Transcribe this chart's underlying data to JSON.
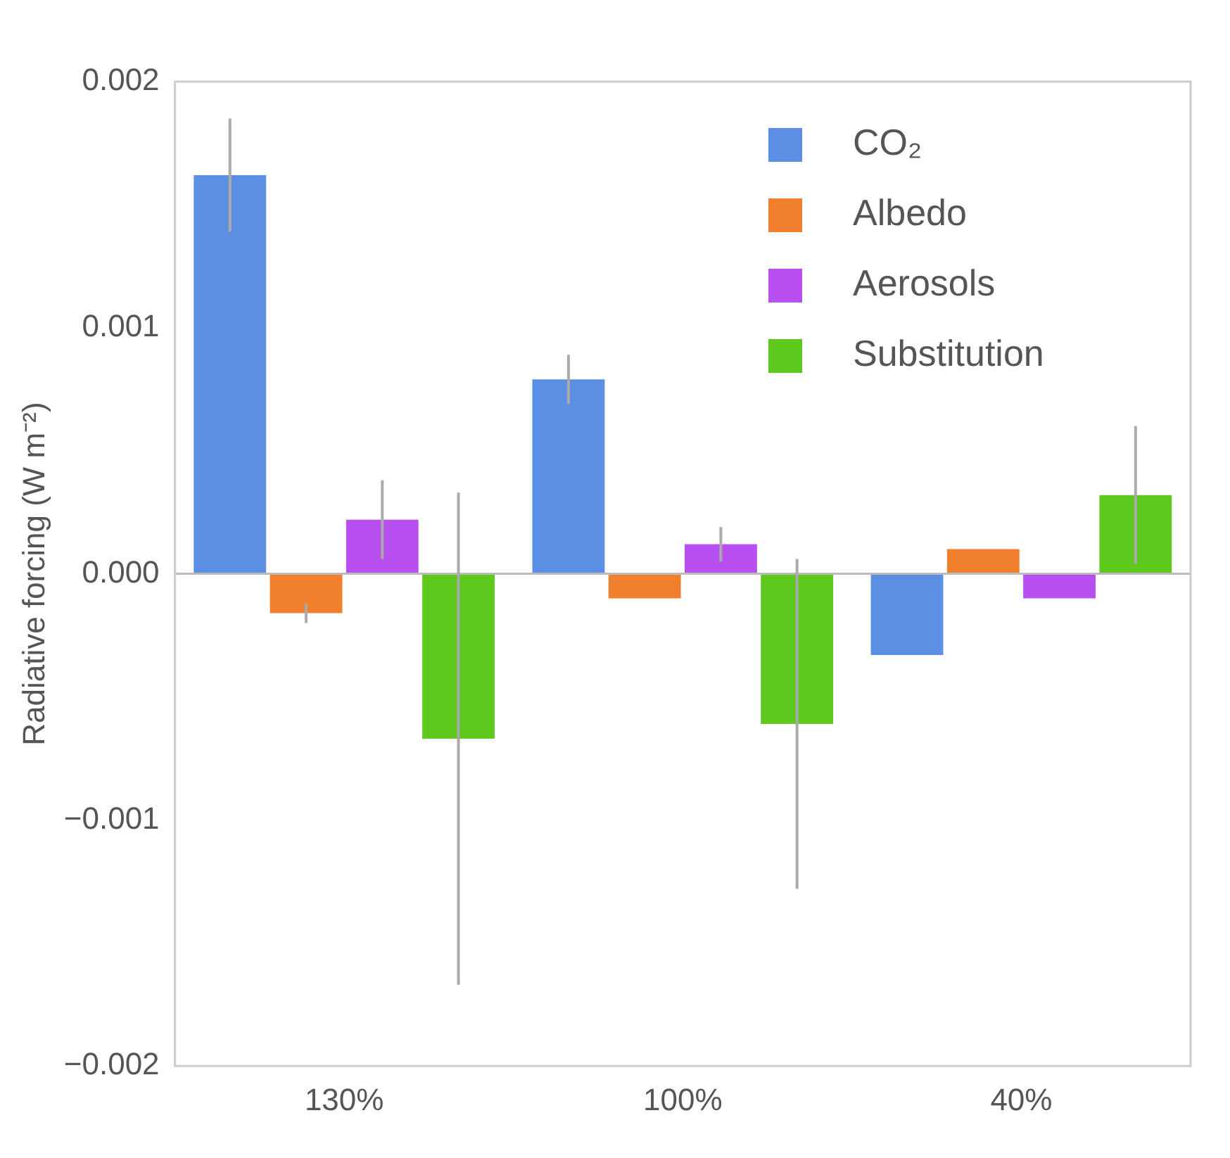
{
  "chart_data": {
    "type": "bar",
    "ylabel": "Radiative forcing (W m⁻²)",
    "categories": [
      "130%",
      "100%",
      "40%"
    ],
    "series": [
      {
        "name": "CO₂",
        "color": "#5b8fe3",
        "values": [
          0.00162,
          0.00079,
          -0.00033
        ],
        "errors": [
          0.00023,
          0.0001,
          null
        ]
      },
      {
        "name": "Albedo",
        "color": "#f07f2e",
        "values": [
          -0.00016,
          -0.0001,
          0.0001
        ],
        "errors": [
          4e-05,
          null,
          null
        ]
      },
      {
        "name": "Aerosols",
        "color": "#b84ff0",
        "values": [
          0.00022,
          0.00012,
          -0.0001
        ],
        "errors": [
          0.00016,
          7e-05,
          null
        ]
      },
      {
        "name": "Substitution",
        "color": "#5ec81c",
        "values": [
          -0.00067,
          -0.00061,
          0.00032
        ],
        "errors": [
          0.001,
          0.00067,
          0.00028
        ]
      }
    ],
    "ylim": [
      -0.002,
      0.002
    ],
    "yticks": [
      {
        "value": -0.002,
        "label": "−0.002"
      },
      {
        "value": -0.001,
        "label": "−0.001"
      },
      {
        "value": 0,
        "label": "0.000"
      },
      {
        "value": 0.001,
        "label": "0.001"
      },
      {
        "value": 0.002,
        "label": "0.002"
      }
    ],
    "ref_lines": [
      {
        "axis": "y",
        "value": 0,
        "color": "#bbbbbb"
      }
    ],
    "legend": "top right",
    "grid": false
  }
}
